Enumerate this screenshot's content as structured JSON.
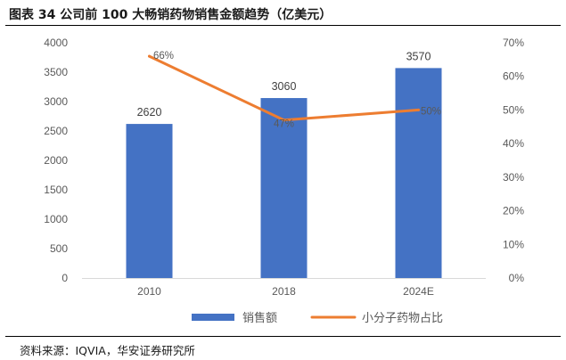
{
  "figure": {
    "title": "图表 34 公司前 100 大畅销药物销售金额趋势（亿美元）",
    "source": "资料来源：IQVIA，华安证券研究所"
  },
  "chart_data": {
    "type": "bar",
    "categories": [
      "2010",
      "2018",
      "2024E"
    ],
    "series": [
      {
        "name": "销售额",
        "type": "bar",
        "axis": "left",
        "values": [
          2620,
          3060,
          3570
        ],
        "labels": [
          "2620",
          "3060",
          "3570"
        ],
        "color": "#4472C4"
      },
      {
        "name": "小分子药物占比",
        "type": "line",
        "axis": "right",
        "values": [
          66,
          47,
          50
        ],
        "labels": [
          "66%",
          "47%",
          "50%"
        ],
        "color": "#ED7D31"
      }
    ],
    "y_left": {
      "min": 0,
      "max": 4000,
      "ticks": [
        "0",
        "500",
        "1000",
        "1500",
        "2000",
        "2500",
        "3000",
        "3500",
        "4000"
      ]
    },
    "y_right": {
      "min": 0,
      "max": 70,
      "ticks": [
        "0%",
        "10%",
        "20%",
        "30%",
        "40%",
        "50%",
        "60%",
        "70%"
      ]
    },
    "legend": {
      "position": "bottom"
    },
    "grid": false
  }
}
